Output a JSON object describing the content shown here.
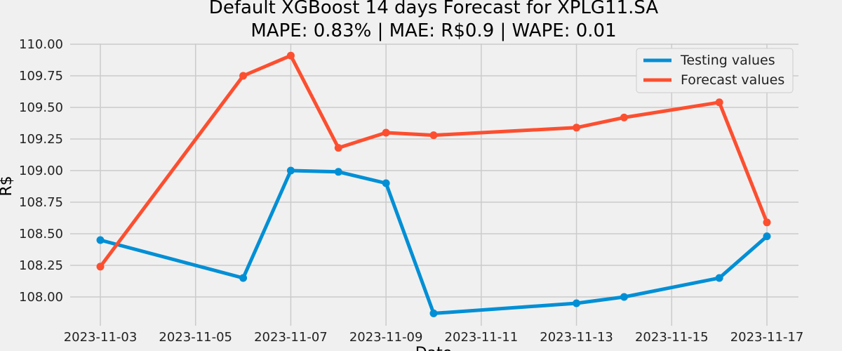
{
  "chart_data": {
    "type": "line",
    "title": "Default XGBoost 14 days Forecast for XPLG11.SA",
    "subtitle": "MAPE: 0.83% | MAE: R$0.9 | WAPE: 0.01",
    "xlabel": "Date",
    "ylabel": "R$",
    "x": [
      "2023-11-03",
      "2023-11-06",
      "2023-11-07",
      "2023-11-08",
      "2023-11-09",
      "2023-11-10",
      "2023-11-13",
      "2023-11-14",
      "2023-11-16",
      "2023-11-17"
    ],
    "x_ticks": [
      "2023-11-03",
      "2023-11-05",
      "2023-11-07",
      "2023-11-09",
      "2023-11-11",
      "2023-11-13",
      "2023-11-15",
      "2023-11-17"
    ],
    "y_ticks": [
      "108.00",
      "108.25",
      "108.50",
      "108.75",
      "109.00",
      "109.25",
      "109.50",
      "109.75",
      "110.00"
    ],
    "ylim": [
      107.83,
      110.0
    ],
    "xlim": [
      "2023-11-02",
      "2023-11-17"
    ],
    "grid": true,
    "legend_position": "top-right",
    "series": [
      {
        "name": "Testing values",
        "color": "#008fd5",
        "values": [
          108.45,
          108.15,
          109.0,
          108.99,
          108.9,
          107.87,
          107.95,
          108.0,
          108.15,
          108.48
        ]
      },
      {
        "name": "Forecast values",
        "color": "#fc4f30",
        "values": [
          108.24,
          109.75,
          109.91,
          109.18,
          109.3,
          109.28,
          109.34,
          109.42,
          109.54,
          108.59
        ]
      }
    ]
  }
}
